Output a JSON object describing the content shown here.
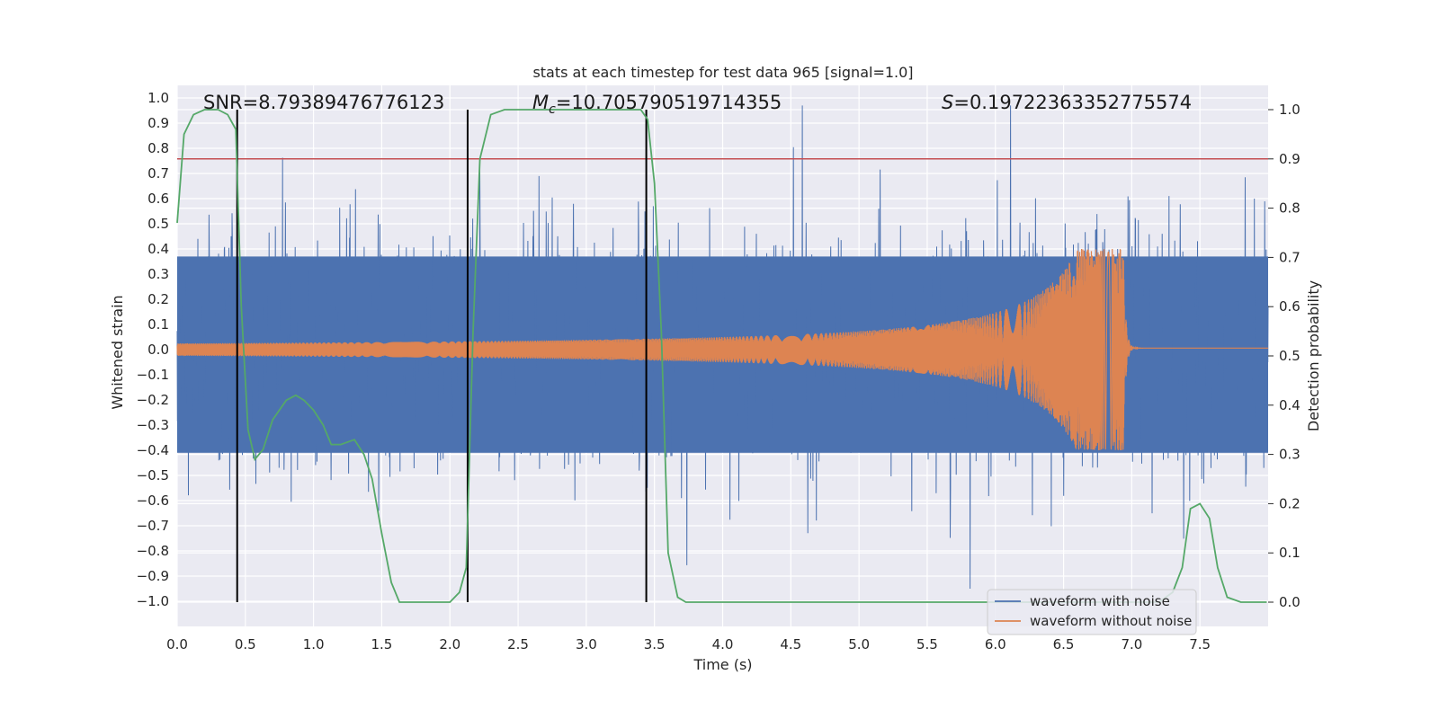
{
  "chart_data": {
    "type": "line",
    "title": "stats at each timestep for test data 965 [signal=1.0]",
    "xlabel": "Time (s)",
    "ylabel_left": "Whitened strain",
    "ylabel_right": "Detection probability",
    "xlim": [
      0,
      8
    ],
    "ylim_left": [
      -1.1,
      1.05
    ],
    "ylim_right": [
      0.0,
      1.0
    ],
    "x_ticks": [
      "0.0",
      "0.5",
      "1.0",
      "1.5",
      "2.0",
      "2.5",
      "3.0",
      "3.5",
      "4.0",
      "4.5",
      "5.0",
      "5.5",
      "6.0",
      "6.5",
      "7.0",
      "7.5"
    ],
    "y_left_ticks": [
      "1.0",
      "0.9",
      "0.8",
      "0.7",
      "0.6",
      "0.5",
      "0.4",
      "0.3",
      "0.2",
      "0.1",
      "0.0",
      "−0.1",
      "−0.2",
      "−0.3",
      "−0.4",
      "−0.5",
      "−0.6",
      "−0.7",
      "−0.8",
      "−0.9",
      "−1.0"
    ],
    "y_right_ticks": [
      "1.0",
      "0.9",
      "0.8",
      "0.7",
      "0.6",
      "0.5",
      "0.4",
      "0.3",
      "0.2",
      "0.1",
      "0.0"
    ],
    "grid": true,
    "legend_position": "lower-right",
    "annotations": {
      "snr": "SNR=8.79389476776123",
      "mc_symbol": "M",
      "mc_subscript": "c",
      "mc_value": "=10.705790519714355",
      "s_symbol": "S",
      "s_value": "=0.19722363352775574"
    },
    "series": [
      {
        "name": "waveform with noise",
        "color": "#4c72b0",
        "axis": "left",
        "description_values": "dense noise between about -0.95 and 0.97 across full time range"
      },
      {
        "name": "waveform without noise",
        "color": "#dd8452",
        "axis": "left",
        "chirp": {
          "start_amplitude": 0.01,
          "peak_amplitude": 0.4,
          "merger_time": 6.94,
          "end_time": 8.0
        }
      },
      {
        "color": "#55a868",
        "axis": "right",
        "x": [
          0.0,
          0.05,
          0.12,
          0.2,
          0.3,
          0.37,
          0.43,
          0.47,
          0.52,
          0.57,
          0.63,
          0.7,
          0.8,
          0.87,
          0.93,
          1.0,
          1.07,
          1.13,
          1.2,
          1.3,
          1.37,
          1.43,
          1.5,
          1.57,
          1.63,
          1.7,
          1.8,
          1.9,
          2.0,
          2.07,
          2.12,
          2.17,
          2.22,
          2.3,
          2.4,
          2.5,
          2.6,
          2.8,
          3.0,
          3.2,
          3.4,
          3.45,
          3.5,
          3.55,
          3.6,
          3.67,
          3.73,
          3.8,
          4.0,
          4.5,
          5.0,
          5.5,
          6.0,
          6.5,
          7.0,
          7.2,
          7.3,
          7.37,
          7.43,
          7.5,
          7.57,
          7.63,
          7.7,
          7.8,
          7.9,
          7.99
        ],
        "y": [
          0.77,
          0.95,
          0.99,
          1.0,
          1.0,
          0.99,
          0.96,
          0.6,
          0.35,
          0.29,
          0.31,
          0.37,
          0.41,
          0.42,
          0.41,
          0.39,
          0.36,
          0.32,
          0.32,
          0.33,
          0.3,
          0.25,
          0.14,
          0.04,
          0.0,
          0.0,
          0.0,
          0.0,
          0.0,
          0.02,
          0.07,
          0.55,
          0.9,
          0.99,
          1.0,
          1.0,
          1.0,
          1.0,
          1.0,
          1.0,
          1.0,
          0.98,
          0.85,
          0.55,
          0.1,
          0.01,
          0.0,
          0.0,
          0.0,
          0.0,
          0.0,
          0.0,
          0.0,
          0.0,
          0.0,
          0.0,
          0.02,
          0.07,
          0.19,
          0.2,
          0.17,
          0.07,
          0.01,
          0.0,
          0.0,
          0.0
        ]
      }
    ],
    "threshold_line": {
      "value": 0.9,
      "axis": "right",
      "color": "#c44e52"
    },
    "vertical_markers": {
      "x": [
        0.44,
        2.13,
        3.44
      ],
      "color": "#000000"
    }
  }
}
